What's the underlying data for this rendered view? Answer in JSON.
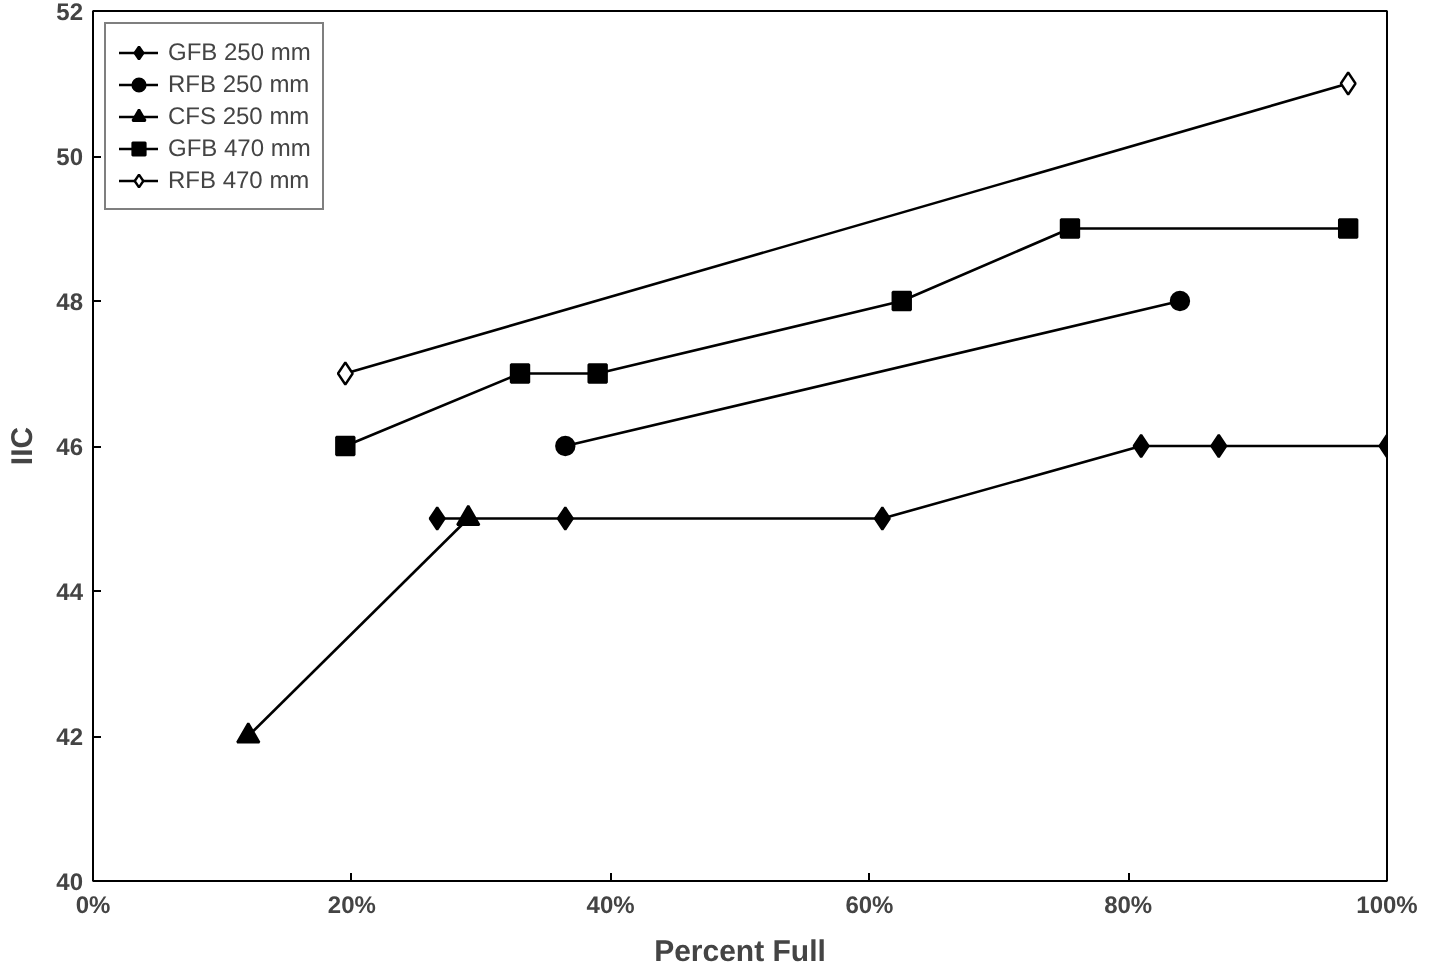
{
  "chart_data": {
    "type": "line",
    "xlabel": "Percent Full",
    "ylabel": "IIC",
    "xlim": [
      0,
      100
    ],
    "ylim": [
      40,
      52
    ],
    "xticks": [
      {
        "value": 0,
        "label": "0%"
      },
      {
        "value": 20,
        "label": "20%"
      },
      {
        "value": 40,
        "label": "40%"
      },
      {
        "value": 60,
        "label": "60%"
      },
      {
        "value": 80,
        "label": "80%"
      },
      {
        "value": 100,
        "label": "100%"
      }
    ],
    "yticks": [
      40,
      42,
      44,
      46,
      48,
      50,
      52
    ],
    "grid": false,
    "legend": "top left",
    "series": [
      {
        "name": "GFB 250 mm",
        "color": "#000000",
        "marker": "diamond",
        "x": [
          26.6,
          36.5,
          61,
          81,
          87,
          100
        ],
        "values": [
          45,
          45,
          45,
          46,
          46,
          46
        ]
      },
      {
        "name": "RFB 250 mm",
        "color": "#000000",
        "marker": "circle",
        "x": [
          36.5,
          84
        ],
        "values": [
          46,
          48
        ]
      },
      {
        "name": "CFS 250 mm",
        "color": "#000000",
        "marker": "triangle",
        "x": [
          12,
          29
        ],
        "values": [
          42,
          45
        ]
      },
      {
        "name": "GFB 470 mm",
        "color": "#000000",
        "marker": "square",
        "x": [
          19.5,
          33,
          39,
          62.5,
          75.5,
          97
        ],
        "values": [
          46,
          47,
          47,
          48,
          49,
          49
        ]
      },
      {
        "name": "RFB 470 mm",
        "color": "#000000",
        "marker": "diamond_open",
        "x": [
          19.5,
          97
        ],
        "values": [
          47,
          51
        ]
      }
    ]
  }
}
